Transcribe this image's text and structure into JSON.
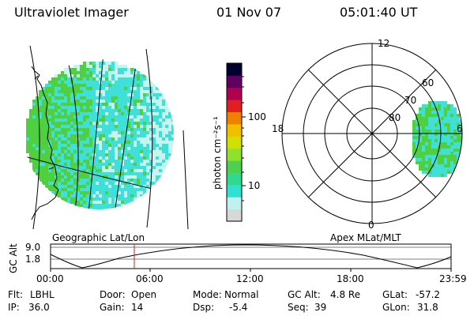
{
  "header": {
    "instrument": "Ultraviolet Imager",
    "date": "01 Nov 07",
    "time": "05:01:40 UT"
  },
  "colorbar": {
    "unit_label": "photon cm⁻²s⁻¹",
    "ticks": [
      "100",
      "10"
    ],
    "scale": "log",
    "colors": [
      "#d8d8d8",
      "#c0f0f0",
      "#30e0d0",
      "#30d890",
      "#50d050",
      "#90e030",
      "#d0e000",
      "#f0c000",
      "#f08000",
      "#e02020",
      "#b00050",
      "#600060",
      "#000030"
    ]
  },
  "left_map": {
    "caption": "Geographic Lat/Lon"
  },
  "right_map": {
    "caption": "Apex MLat/MLT",
    "lat_labels": [
      "80",
      "70",
      "60"
    ],
    "mlt_labels": [
      "12",
      "18",
      "6",
      "0"
    ]
  },
  "timeline": {
    "axis_label": "GC Alt",
    "y_ticks": [
      "9.0",
      "1.8"
    ],
    "x_ticks": [
      "00:00",
      "06:00",
      "12:00",
      "18:00",
      "23:59"
    ],
    "current_time_fraction": 0.209
  },
  "info": {
    "flt_label": "Flt:",
    "flt_value": "LBHL",
    "ip_label": "IP:",
    "ip_value": "36.0",
    "door_label": "Door:",
    "door_value": "Open",
    "gain_label": "Gain:",
    "gain_value": "14",
    "mode_label": "Mode:",
    "mode_value": "Normal",
    "dsp_label": "Dsp:",
    "dsp_value": "-5.4",
    "gcalt_label": "GC Alt:",
    "gcalt_value": "4.8 Re",
    "seq_label": "Seq:",
    "seq_value": "39",
    "glat_label": "GLat:",
    "glat_value": "-57.2",
    "glon_label": "GLon:",
    "glon_value": "31.8"
  },
  "colors": {
    "speckle_green": "#50d040",
    "speckle_cyan": "#40e0d8",
    "speckle_pale": "#c8f4f0",
    "marker_line": "#cc2222"
  }
}
